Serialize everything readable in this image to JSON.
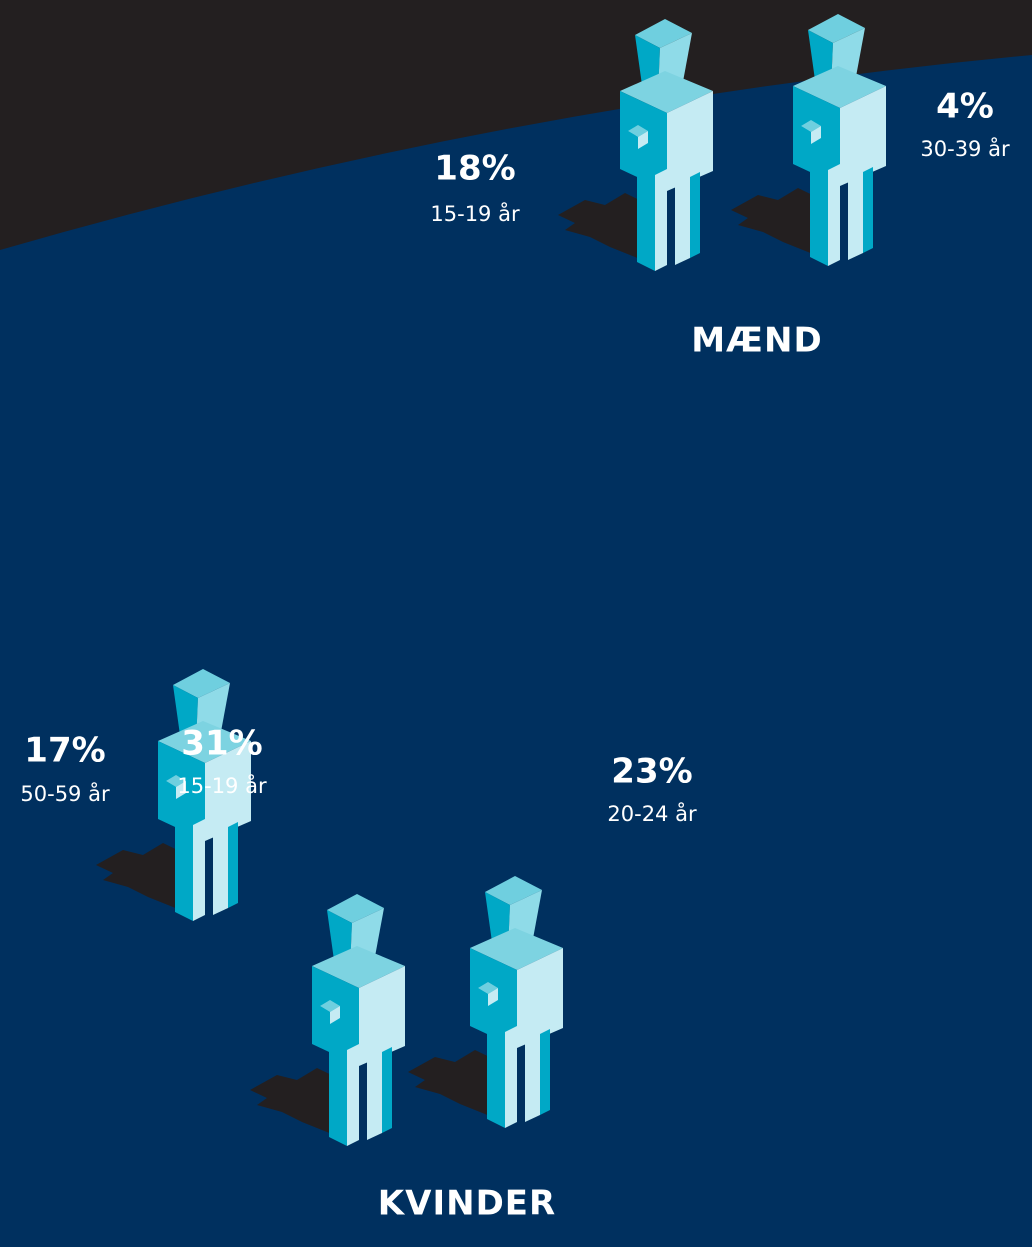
{
  "men": {
    "title": "MÆND",
    "figures": [
      {
        "percent": "18%",
        "age": "15-19 år"
      },
      {
        "percent": "4%",
        "age": "30-39 år"
      }
    ]
  },
  "women": {
    "title": "KVINDER",
    "figures": [
      {
        "percent": "17%",
        "age": "50-59 år"
      },
      {
        "percent": "31%",
        "age": "15-19 år"
      },
      {
        "percent": "23%",
        "age": "20-24 år"
      }
    ]
  }
}
